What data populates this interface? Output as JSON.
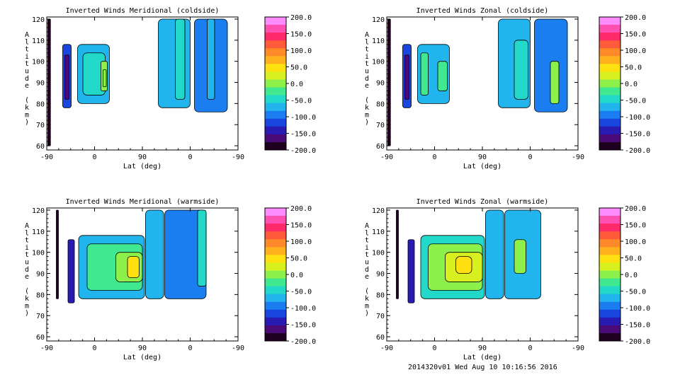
{
  "footer": "2014320v01 Wed Aug 10 10:16:56 2016",
  "colorbar": {
    "ticks": [
      "200.0",
      "150.0",
      "100.0",
      "50.0",
      "0.0",
      "-50.0",
      "-100.0",
      "-150.0",
      "-200.0"
    ],
    "colors": [
      "#ff8cff",
      "#ff4fb0",
      "#ff2a6a",
      "#ff5a3a",
      "#ff8a2a",
      "#ffb21e",
      "#ffe010",
      "#d8f020",
      "#8ef04a",
      "#40e890",
      "#22d8c8",
      "#22b4ec",
      "#1a7ef0",
      "#1a46e0",
      "#2a1ab4",
      "#4a0a78",
      "#200020"
    ],
    "range": [
      -200,
      200
    ]
  },
  "chart_data": [
    {
      "type": "heatmap",
      "title": "Inverted Winds Meridional (coldside)",
      "xlabel": "Lat (deg)",
      "ylabel": "Altitude (km)",
      "xticks": [
        "-90",
        "0",
        "90",
        "0",
        "-90"
      ],
      "yticks": [
        "60",
        "70",
        "80",
        "90",
        "100",
        "110",
        "120"
      ],
      "ylim": [
        58,
        121
      ],
      "cells": [
        {
          "x": [
            -88,
            -83
          ],
          "y": [
            60,
            120
          ],
          "v": -200
        },
        {
          "x": [
            -60,
            -44
          ],
          "y": [
            78,
            108
          ],
          "v": -120
        },
        {
          "x": [
            -56,
            -48
          ],
          "y": [
            82,
            103
          ],
          "v": -160
        },
        {
          "x": [
            -32,
            28
          ],
          "y": [
            80,
            108
          ],
          "v": -70
        },
        {
          "x": [
            -22,
            20
          ],
          "y": [
            84,
            104
          ],
          "v": -40
        },
        {
          "x": [
            12,
            24
          ],
          "y": [
            86,
            100
          ],
          "v": -10
        },
        {
          "x": [
            16,
            22
          ],
          "y": [
            88,
            96
          ],
          "v": 10
        },
        {
          "x": [
            120,
            180
          ],
          "y": [
            78,
            120
          ],
          "v": -70
        },
        {
          "x": [
            152,
            170
          ],
          "y": [
            82,
            120
          ],
          "v": -45
        },
        {
          "x": [
            188,
            250
          ],
          "y": [
            76,
            120
          ],
          "v": -100
        },
        {
          "x": [
            212,
            226
          ],
          "y": [
            82,
            120
          ],
          "v": -60
        }
      ]
    },
    {
      "type": "heatmap",
      "title": "Inverted Winds Zonal (coldside)",
      "xlabel": "Lat (deg)",
      "ylabel": "Altitude (km)",
      "xticks": [
        "-90",
        "0",
        "90",
        "0",
        "-90"
      ],
      "yticks": [
        "60",
        "70",
        "80",
        "90",
        "100",
        "110",
        "120"
      ],
      "ylim": [
        58,
        121
      ],
      "cells": [
        {
          "x": [
            -88,
            -83
          ],
          "y": [
            60,
            120
          ],
          "v": -200
        },
        {
          "x": [
            -60,
            -44
          ],
          "y": [
            78,
            108
          ],
          "v": -120
        },
        {
          "x": [
            -56,
            -48
          ],
          "y": [
            82,
            103
          ],
          "v": -160
        },
        {
          "x": [
            -32,
            28
          ],
          "y": [
            80,
            108
          ],
          "v": -60
        },
        {
          "x": [
            -26,
            -12
          ],
          "y": [
            84,
            104
          ],
          "v": -20
        },
        {
          "x": [
            6,
            24
          ],
          "y": [
            86,
            100
          ],
          "v": -15
        },
        {
          "x": [
            120,
            180
          ],
          "y": [
            78,
            120
          ],
          "v": -80
        },
        {
          "x": [
            150,
            176
          ],
          "y": [
            82,
            110
          ],
          "v": -40
        },
        {
          "x": [
            188,
            250
          ],
          "y": [
            76,
            120
          ],
          "v": -95
        },
        {
          "x": [
            218,
            234
          ],
          "y": [
            80,
            100
          ],
          "v": 0
        }
      ]
    },
    {
      "type": "heatmap",
      "title": "Inverted Winds Meridional (warmside)",
      "xlabel": "Lat (deg)",
      "ylabel": "Altitude (km)",
      "xticks": [
        "-90",
        "0",
        "90",
        "0",
        "-90"
      ],
      "yticks": [
        "60",
        "70",
        "80",
        "90",
        "100",
        "110",
        "120"
      ],
      "ylim": [
        58,
        121
      ],
      "cells": [
        {
          "x": [
            -72,
            -68
          ],
          "y": [
            78,
            120
          ],
          "v": -200
        },
        {
          "x": [
            -50,
            -38
          ],
          "y": [
            76,
            106
          ],
          "v": -150
        },
        {
          "x": [
            -30,
            94
          ],
          "y": [
            78,
            108
          ],
          "v": -70
        },
        {
          "x": [
            -14,
            90
          ],
          "y": [
            82,
            104
          ],
          "v": -35
        },
        {
          "x": [
            40,
            90
          ],
          "y": [
            86,
            100
          ],
          "v": 10
        },
        {
          "x": [
            62,
            84
          ],
          "y": [
            88,
            98
          ],
          "v": 40
        },
        {
          "x": [
            96,
            130
          ],
          "y": [
            78,
            120
          ],
          "v": -80
        },
        {
          "x": [
            132,
            210
          ],
          "y": [
            78,
            120
          ],
          "v": -90
        },
        {
          "x": [
            194,
            210
          ],
          "y": [
            84,
            120
          ],
          "v": -40
        }
      ]
    },
    {
      "type": "heatmap",
      "title": "Inverted Winds Zonal (warmside)",
      "xlabel": "Lat (deg)",
      "ylabel": "Altitude (km)",
      "xticks": [
        "-90",
        "0",
        "90",
        "0",
        "-90"
      ],
      "yticks": [
        "60",
        "70",
        "80",
        "90",
        "100",
        "110",
        "120"
      ],
      "ylim": [
        58,
        121
      ],
      "cells": [
        {
          "x": [
            -72,
            -68
          ],
          "y": [
            78,
            120
          ],
          "v": -200
        },
        {
          "x": [
            -50,
            -38
          ],
          "y": [
            76,
            106
          ],
          "v": -150
        },
        {
          "x": [
            -26,
            94
          ],
          "y": [
            78,
            108
          ],
          "v": -40
        },
        {
          "x": [
            -12,
            90
          ],
          "y": [
            82,
            104
          ],
          "v": 0
        },
        {
          "x": [
            20,
            90
          ],
          "y": [
            86,
            100
          ],
          "v": 30
        },
        {
          "x": [
            40,
            70
          ],
          "y": [
            90,
            98
          ],
          "v": 55
        },
        {
          "x": [
            96,
            130
          ],
          "y": [
            78,
            120
          ],
          "v": -70
        },
        {
          "x": [
            132,
            200
          ],
          "y": [
            78,
            120
          ],
          "v": -80
        },
        {
          "x": [
            150,
            172
          ],
          "y": [
            90,
            106
          ],
          "v": 10
        }
      ]
    }
  ]
}
